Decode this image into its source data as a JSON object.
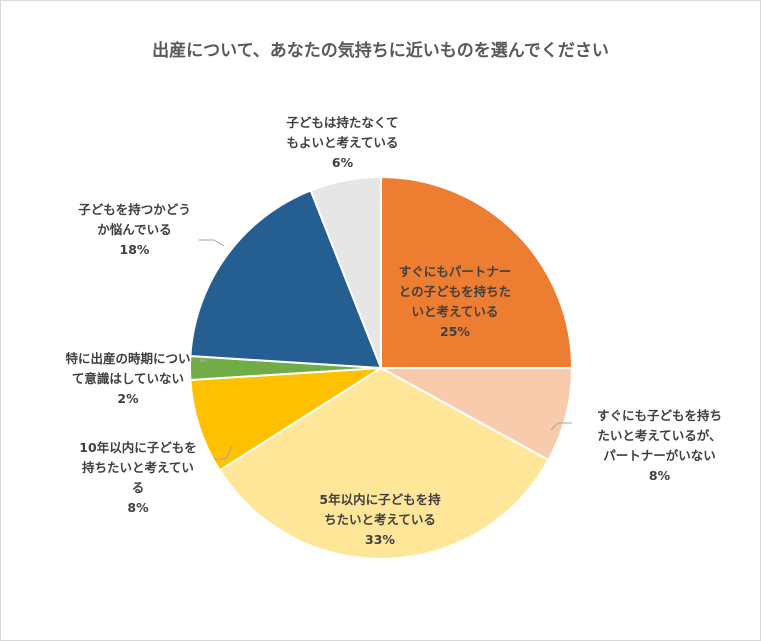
{
  "chart_data": {
    "type": "pie",
    "title": "出産について、あなたの気持ちに近いものを選んでください",
    "slices": [
      {
        "label_lines": [
          "すぐにもパートナー",
          "との子どもを持ちた",
          "いと考えている"
        ],
        "value": 25,
        "value_label": "25%",
        "color": "#ed7d31"
      },
      {
        "label_lines": [
          "すぐにも子どもを持ち",
          "たいと考えているが、",
          "パートナーがいない"
        ],
        "value": 8,
        "value_label": "8%",
        "color": "#f8cbad"
      },
      {
        "label_lines": [
          "5年以内に子どもを持",
          "ちたいと考えている"
        ],
        "value": 33,
        "value_label": "33%",
        "color": "#ffe699"
      },
      {
        "label_lines": [
          "10年以内に子どもを",
          "持ちたいと考えてい",
          "る"
        ],
        "value": 8,
        "value_label": "8%",
        "color": "#ffc000"
      },
      {
        "label_lines": [
          "特に出産の時期につい",
          "て意識はしていない"
        ],
        "value": 2,
        "value_label": "2%",
        "color": "#70ad47"
      },
      {
        "label_lines": [
          "子どもを持つかどう",
          "か悩んでいる"
        ],
        "value": 18,
        "value_label": "18%",
        "color": "#255e91"
      },
      {
        "label_lines": [
          "子どもは持たなくて",
          "もよいと考えている"
        ],
        "value": 6,
        "value_label": "6%",
        "color": "#e7e6e6"
      }
    ]
  }
}
